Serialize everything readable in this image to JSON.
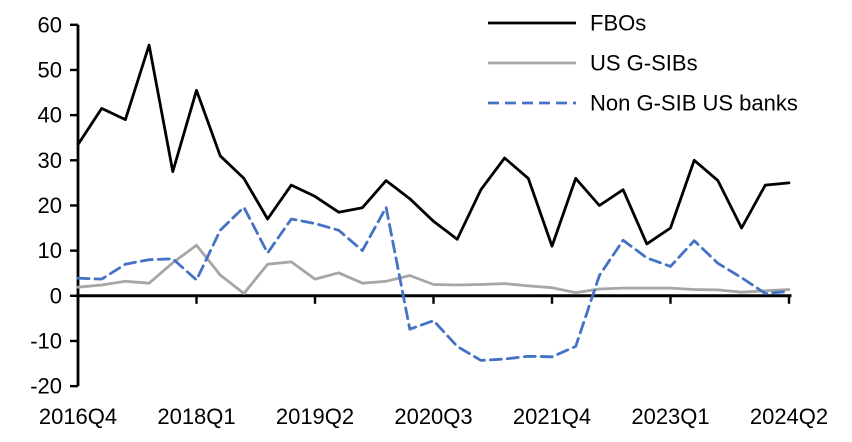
{
  "chart_data": {
    "type": "line",
    "title": "",
    "xlabel": "",
    "ylabel": "",
    "ylim": [
      -20,
      60
    ],
    "y_ticks": [
      60,
      50,
      40,
      30,
      20,
      10,
      0,
      -10,
      -20
    ],
    "grid": false,
    "legend_position": "top-right",
    "categories": [
      "2016Q4",
      "2017Q1",
      "2017Q2",
      "2017Q3",
      "2017Q4",
      "2018Q1",
      "2018Q2",
      "2018Q3",
      "2018Q4",
      "2019Q1",
      "2019Q2",
      "2019Q3",
      "2019Q4",
      "2020Q1",
      "2020Q2",
      "2020Q3",
      "2020Q4",
      "2021Q1",
      "2021Q2",
      "2021Q3",
      "2021Q4",
      "2022Q1",
      "2022Q2",
      "2022Q3",
      "2022Q4",
      "2023Q1",
      "2023Q2",
      "2023Q3",
      "2023Q4",
      "2024Q1",
      "2024Q2"
    ],
    "x_tick_labels": [
      "2016Q4",
      "2018Q1",
      "2019Q2",
      "2020Q3",
      "2021Q4",
      "2023Q1",
      "2024Q2"
    ],
    "x_tick_indices": [
      0,
      5,
      10,
      15,
      20,
      25,
      30
    ],
    "axis_color": "#000000",
    "series": [
      {
        "name": "FBOs",
        "color": "#000000",
        "dash": "",
        "values": [
          33.5,
          41.5,
          39,
          55.5,
          27.5,
          45.5,
          31,
          26,
          17,
          24.5,
          22,
          18.5,
          19.5,
          25.5,
          21.5,
          16.5,
          12.5,
          23.5,
          30.5,
          26,
          11,
          26,
          20,
          23.5,
          11.5,
          15,
          30,
          25.5,
          15,
          24.5,
          25
        ]
      },
      {
        "name": "US G-SIBs",
        "color": "#a6a6a6",
        "dash": "",
        "values": [
          1.9,
          2.4,
          3.2,
          2.8,
          7.3,
          11.2,
          4.6,
          0.5,
          7,
          7.5,
          3.7,
          5.1,
          2.8,
          3.2,
          4.5,
          2.5,
          2.4,
          2.5,
          2.7,
          2.2,
          1.8,
          0.7,
          1.5,
          1.7,
          1.7,
          1.7,
          1.4,
          1.3,
          0.8,
          1.1,
          1.4
        ]
      },
      {
        "name": "Non G-SIB US banks",
        "color": "#4472c4",
        "dash": "11 6",
        "values": [
          3.9,
          3.7,
          7,
          8,
          8.2,
          3.5,
          14.5,
          19.6,
          9.5,
          17,
          16,
          14.5,
          10,
          19.6,
          -7.4,
          -5.5,
          -11.2,
          -14.3,
          -14,
          -13.4,
          -13.5,
          -11.2,
          4.5,
          12.3,
          8.4,
          6.5,
          12.2,
          7.2,
          4,
          0.5,
          1
        ]
      }
    ]
  }
}
